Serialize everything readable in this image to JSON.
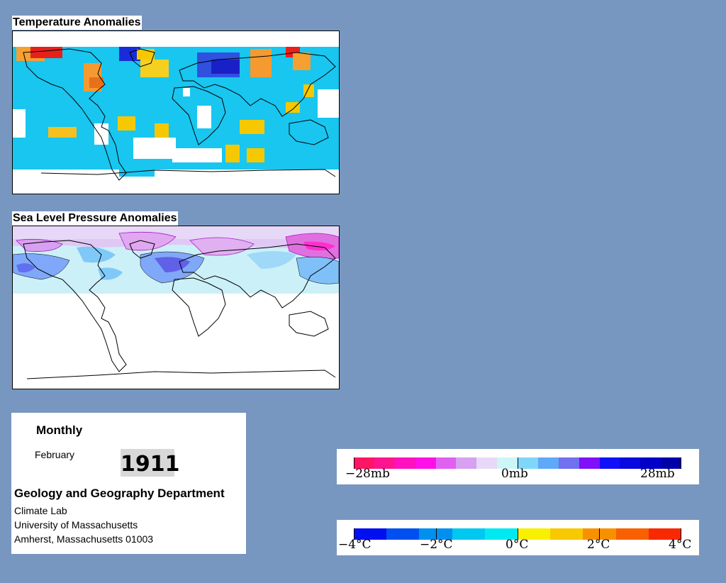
{
  "temperature_map": {
    "title": "Temperature Anomalies"
  },
  "pressure_map": {
    "title": "Sea Level Pressure Anomalies"
  },
  "info": {
    "period": "Monthly",
    "month": "February",
    "year": "1911",
    "department": "Geology and Geography Department",
    "lab": "Climate Lab",
    "university": "University of Massachusetts",
    "address": "Amherst, Massachusetts 01003"
  },
  "pressure_legend": {
    "labels": [
      "−28mb",
      "0mb",
      "28mb"
    ],
    "colors": [
      "#ff1566",
      "#ff1490",
      "#ff10c0",
      "#ff10e8",
      "#e060f0",
      "#d8a0f0",
      "#e8d8f8",
      "#ccf6f8",
      "#80d6f8",
      "#60a8f8",
      "#7070f0",
      "#8010f8",
      "#1010f8",
      "#0808e0",
      "#0000c8",
      "#0000a8"
    ]
  },
  "temperature_legend": {
    "labels": [
      "−4°C",
      "−2°C",
      "0°C",
      "2°C",
      "4°C"
    ],
    "colors": [
      "#0010f0",
      "#0050f0",
      "#0090f0",
      "#00c8f0",
      "#00e8f0",
      "#f8f000",
      "#f8c800",
      "#f89000",
      "#f86000",
      "#f82800"
    ]
  },
  "colors": {
    "background": "#7797c0",
    "land_outline": "#000000"
  }
}
